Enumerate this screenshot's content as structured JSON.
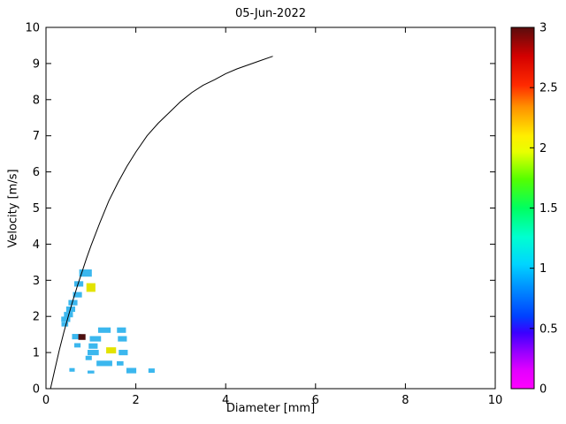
{
  "chart_data": {
    "type": "heatmap",
    "title": "05-Jun-2022",
    "xlabel": "Diameter [mm]",
    "ylabel": "Velocity [m/s]",
    "xlim": [
      0,
      10
    ],
    "ylim": [
      0,
      10
    ],
    "xtick_values": [
      0,
      2,
      4,
      6,
      8,
      10
    ],
    "xtick_labels": [
      "0",
      "2",
      "4",
      "6",
      "8",
      "10"
    ],
    "ytick_values": [
      0,
      1,
      2,
      3,
      4,
      5,
      6,
      7,
      8,
      9,
      10
    ],
    "ytick_labels": [
      "0",
      "1",
      "2",
      "3",
      "4",
      "5",
      "6",
      "7",
      "8",
      "9",
      "10"
    ],
    "grid": false,
    "curve": {
      "name": "terminal-velocity-curve",
      "color": "#000000",
      "points": [
        [
          0.1,
          0.0
        ],
        [
          0.2,
          0.55
        ],
        [
          0.3,
          1.08
        ],
        [
          0.4,
          1.57
        ],
        [
          0.5,
          2.02
        ],
        [
          0.6,
          2.45
        ],
        [
          0.7,
          2.85
        ],
        [
          0.8,
          3.22
        ],
        [
          0.9,
          3.6
        ],
        [
          1.0,
          3.95
        ],
        [
          1.2,
          4.6
        ],
        [
          1.4,
          5.2
        ],
        [
          1.6,
          5.7
        ],
        [
          1.8,
          6.15
        ],
        [
          2.0,
          6.55
        ],
        [
          2.25,
          7.0
        ],
        [
          2.5,
          7.35
        ],
        [
          2.75,
          7.65
        ],
        [
          3.0,
          7.95
        ],
        [
          3.25,
          8.2
        ],
        [
          3.5,
          8.4
        ],
        [
          3.75,
          8.55
        ],
        [
          4.0,
          8.72
        ],
        [
          4.25,
          8.85
        ],
        [
          4.5,
          8.96
        ],
        [
          4.75,
          9.07
        ],
        [
          5.05,
          9.2
        ]
      ]
    },
    "cells_default_size": {
      "w": 0.2,
      "h": 0.15
    },
    "value_colors": {
      "1": "#3bb7ee",
      "2": "#e3e300",
      "3": "#4d0f0f"
    },
    "cells": [
      {
        "d": 0.88,
        "v": 3.2,
        "value": 1,
        "w": 0.28,
        "h": 0.2
      },
      {
        "d": 0.73,
        "v": 2.9,
        "value": 1
      },
      {
        "d": 1.0,
        "v": 2.8,
        "value": 2,
        "w": 0.2,
        "h": 0.24
      },
      {
        "d": 0.7,
        "v": 2.6,
        "value": 1
      },
      {
        "d": 0.6,
        "v": 2.38,
        "value": 1
      },
      {
        "d": 0.55,
        "v": 2.2,
        "value": 1
      },
      {
        "d": 0.5,
        "v": 2.05,
        "value": 1
      },
      {
        "d": 0.44,
        "v": 1.92,
        "value": 1
      },
      {
        "d": 0.42,
        "v": 1.78,
        "value": 1,
        "w": 0.15,
        "h": 0.12
      },
      {
        "d": 1.3,
        "v": 1.62,
        "value": 1,
        "w": 0.28,
        "h": 0.15
      },
      {
        "d": 1.68,
        "v": 1.62,
        "value": 1
      },
      {
        "d": 0.68,
        "v": 1.44,
        "value": 1
      },
      {
        "d": 0.8,
        "v": 1.43,
        "value": 3,
        "w": 0.16,
        "h": 0.16
      },
      {
        "d": 1.1,
        "v": 1.38,
        "value": 1,
        "w": 0.25,
        "h": 0.15
      },
      {
        "d": 1.7,
        "v": 1.38,
        "value": 1
      },
      {
        "d": 0.7,
        "v": 1.2,
        "value": 1,
        "w": 0.14,
        "h": 0.12
      },
      {
        "d": 1.05,
        "v": 1.18,
        "value": 1
      },
      {
        "d": 1.05,
        "v": 1.0,
        "value": 1,
        "w": 0.25,
        "h": 0.15
      },
      {
        "d": 1.45,
        "v": 1.06,
        "value": 2,
        "w": 0.22,
        "h": 0.17
      },
      {
        "d": 1.72,
        "v": 1.0,
        "value": 1
      },
      {
        "d": 0.95,
        "v": 0.85,
        "value": 1,
        "w": 0.14,
        "h": 0.12
      },
      {
        "d": 1.3,
        "v": 0.7,
        "value": 1,
        "w": 0.35,
        "h": 0.15
      },
      {
        "d": 1.65,
        "v": 0.7,
        "value": 1,
        "w": 0.15,
        "h": 0.12
      },
      {
        "d": 0.58,
        "v": 0.52,
        "value": 1,
        "w": 0.12,
        "h": 0.1
      },
      {
        "d": 1.0,
        "v": 0.46,
        "value": 1,
        "w": 0.15,
        "h": 0.08
      },
      {
        "d": 1.9,
        "v": 0.5,
        "value": 1,
        "w": 0.22,
        "h": 0.15
      },
      {
        "d": 2.35,
        "v": 0.5,
        "value": 1,
        "w": 0.14,
        "h": 0.12
      }
    ],
    "colorbar": {
      "min": 0,
      "max": 3,
      "tick_values": [
        0,
        0.5,
        1,
        1.5,
        2,
        2.5,
        3
      ],
      "tick_labels": [
        "0",
        "0.5",
        "1",
        "1.5",
        "2",
        "2.5",
        "3"
      ],
      "gradient": [
        {
          "offset": 0.0,
          "color": "#ff00ff"
        },
        {
          "offset": 0.05,
          "color": "#e300ff"
        },
        {
          "offset": 0.1,
          "color": "#9900ff"
        },
        {
          "offset": 0.155,
          "color": "#3a00ff"
        },
        {
          "offset": 0.2,
          "color": "#0040ff"
        },
        {
          "offset": 0.28,
          "color": "#0090ff"
        },
        {
          "offset": 0.345,
          "color": "#00d5ff"
        },
        {
          "offset": 0.42,
          "color": "#00ffd0"
        },
        {
          "offset": 0.5,
          "color": "#00ff60"
        },
        {
          "offset": 0.58,
          "color": "#55ff00"
        },
        {
          "offset": 0.655,
          "color": "#e8ff00"
        },
        {
          "offset": 0.7,
          "color": "#ffee00"
        },
        {
          "offset": 0.78,
          "color": "#ff9100"
        },
        {
          "offset": 0.84,
          "color": "#ff2a00"
        },
        {
          "offset": 0.92,
          "color": "#d40000"
        },
        {
          "offset": 1.0,
          "color": "#5a0d0d"
        }
      ]
    }
  }
}
